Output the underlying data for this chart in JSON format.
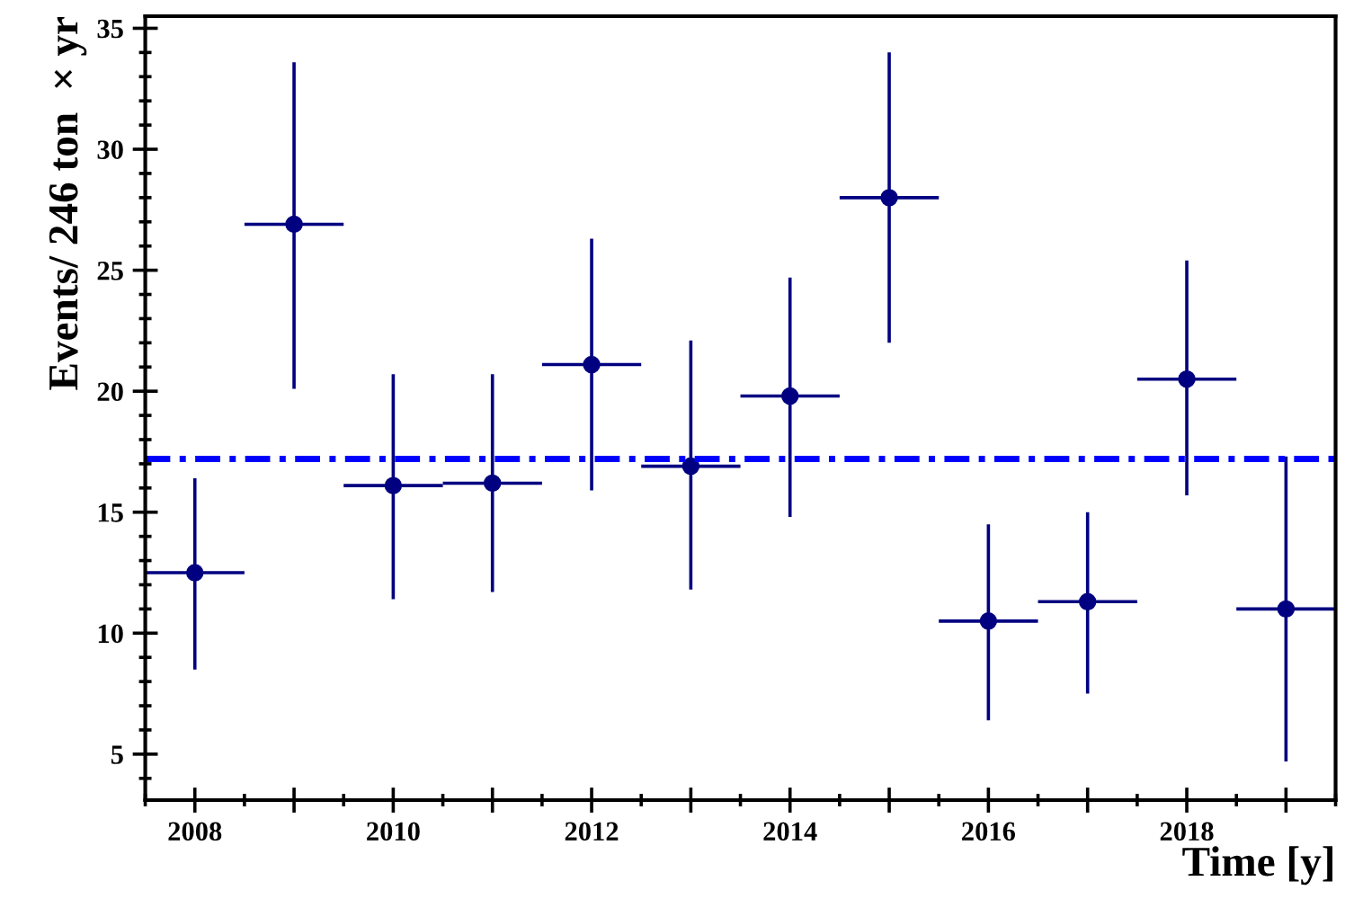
{
  "chart_data": {
    "type": "scatter",
    "xlabel": "Time [y]",
    "ylabel": "Events/ 246 ton  × yr",
    "x": [
      2008,
      2009,
      2010,
      2011,
      2012,
      2013,
      2014,
      2015,
      2016,
      2017,
      2018,
      2019
    ],
    "series": [
      {
        "color": "#000080",
        "values": [
          12.5,
          26.9,
          16.1,
          16.2,
          21.1,
          16.9,
          19.8,
          28.0,
          10.5,
          11.3,
          20.5,
          11.0
        ],
        "errors": [
          [
            8.5,
            16.4
          ],
          [
            20.1,
            33.6
          ],
          [
            11.4,
            20.7
          ],
          [
            11.7,
            20.7
          ],
          [
            15.9,
            26.3
          ],
          [
            11.8,
            22.1
          ],
          [
            14.8,
            24.7
          ],
          [
            22.0,
            34.0
          ],
          [
            6.4,
            14.5
          ],
          [
            7.5,
            15.0
          ],
          [
            15.7,
            25.4
          ],
          [
            4.7,
            17.3
          ]
        ],
        "xerrors": [
          0.5,
          0.5,
          0.5,
          0.5,
          0.5,
          0.5,
          0.5,
          0.5,
          0.5,
          0.5,
          0.5,
          0.5
        ]
      }
    ],
    "marker": "circle",
    "xlim": [
      2007.5,
      2019.5
    ],
    "ylim": [
      3.1,
      35.5
    ],
    "xticks": [
      2008,
      {
        "value": 2009,
        "label": null
      },
      2010,
      {
        "value": 2011,
        "label": null
      },
      2012,
      {
        "value": 2013,
        "label": null
      },
      2014,
      {
        "value": 2015,
        "label": null
      },
      2016,
      {
        "value": 2017,
        "label": null
      },
      2018,
      {
        "value": 2019,
        "label": null
      }
    ],
    "yticks": [
      5,
      10,
      15,
      20,
      25,
      30,
      35
    ],
    "ref_lines": [
      {
        "axis": "y",
        "value": 17.2,
        "color": "#0000ff",
        "line_style": "dashed"
      }
    ],
    "grid": false,
    "legend": false
  }
}
